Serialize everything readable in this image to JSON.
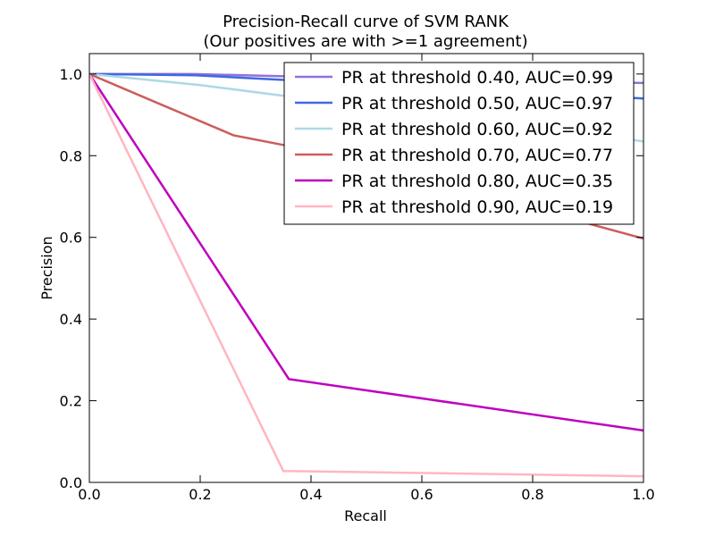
{
  "chart_data": {
    "type": "line",
    "title": "Precision-Recall curve of SVM RANK",
    "subtitle": "(Our positives are with >=1 agreement)",
    "xlabel": "Recall",
    "ylabel": "Precision",
    "xlim": [
      0.0,
      1.0
    ],
    "ylim": [
      0.0,
      1.05
    ],
    "grid": false,
    "legend_position": "top-right",
    "x_ticks": [
      "0.0",
      "0.2",
      "0.4",
      "0.6",
      "0.8",
      "1.0"
    ],
    "y_ticks": [
      "0.0",
      "0.2",
      "0.4",
      "0.6",
      "0.8",
      "1.0"
    ],
    "series": [
      {
        "name": "PR at threshold 0.40, AUC=0.99",
        "color": "#9370db",
        "points": [
          [
            0.0,
            1.0
          ],
          [
            0.19,
            1.0
          ],
          [
            0.39,
            0.993
          ],
          [
            1.0,
            0.978
          ]
        ]
      },
      {
        "name": "PR at threshold 0.50, AUC=0.97",
        "color": "#4169e1",
        "points": [
          [
            0.0,
            1.0
          ],
          [
            0.19,
            0.997
          ],
          [
            0.36,
            0.985
          ],
          [
            1.0,
            0.94
          ]
        ]
      },
      {
        "name": "PR at threshold 0.60, AUC=0.92",
        "color": "#add8e6",
        "points": [
          [
            0.0,
            1.0
          ],
          [
            0.2,
            0.973
          ],
          [
            0.36,
            0.945
          ],
          [
            1.0,
            0.835
          ]
        ]
      },
      {
        "name": "PR at threshold 0.70, AUC=0.77",
        "color": "#cd5c5c",
        "points": [
          [
            0.0,
            1.0
          ],
          [
            0.26,
            0.85
          ],
          [
            0.45,
            0.8
          ],
          [
            1.0,
            0.597
          ]
        ]
      },
      {
        "name": "PR at threshold 0.80, AUC=0.35",
        "color": "#bf00bf",
        "points": [
          [
            0.0,
            1.0
          ],
          [
            0.36,
            0.253
          ],
          [
            1.0,
            0.127
          ]
        ]
      },
      {
        "name": "PR at threshold 0.90, AUC=0.19",
        "color": "#ffb6c1",
        "points": [
          [
            0.0,
            1.0
          ],
          [
            0.35,
            0.028
          ],
          [
            1.0,
            0.015
          ]
        ]
      }
    ]
  }
}
